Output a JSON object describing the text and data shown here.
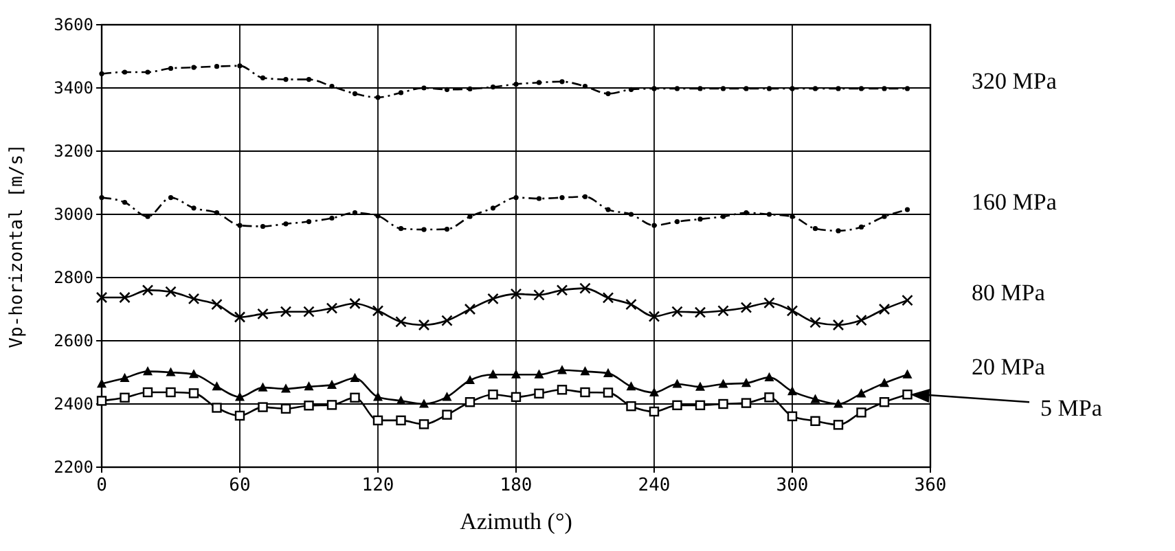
{
  "chart_data": {
    "type": "line",
    "xlabel": "Azimuth (°)",
    "ylabel": "Vp-horizontal [m/s]",
    "x": [
      0,
      10,
      20,
      30,
      40,
      50,
      60,
      70,
      80,
      90,
      100,
      110,
      120,
      130,
      140,
      150,
      160,
      170,
      180,
      190,
      200,
      210,
      220,
      230,
      240,
      250,
      260,
      270,
      280,
      290,
      300,
      310,
      320,
      330,
      340,
      350
    ],
    "xlim": [
      0,
      360
    ],
    "xticks": [
      0,
      60,
      120,
      180,
      240,
      300,
      360
    ],
    "ylim": [
      2200,
      3600
    ],
    "yticks": [
      2200,
      2400,
      2600,
      2800,
      3000,
      3200,
      3400,
      3600
    ],
    "grid": true,
    "legend": "right",
    "series": [
      {
        "name": "320 MPa",
        "color": "#000000",
        "marker": "circle",
        "line_style": "dashed",
        "values": [
          3445,
          3450,
          3450,
          3462,
          3465,
          3468,
          3470,
          3432,
          3427,
          3427,
          3405,
          3382,
          3370,
          3385,
          3400,
          3395,
          3397,
          3403,
          3412,
          3417,
          3420,
          3405,
          3382,
          3395,
          3398,
          3398,
          3398,
          3398,
          3398,
          3398,
          3398,
          3398,
          3398,
          3398,
          3398,
          3398
        ]
      },
      {
        "name": "160 MPa",
        "color": "#000000",
        "marker": "circle",
        "line_style": "dashed",
        "values": [
          3053,
          3038,
          2993,
          3053,
          3020,
          3005,
          2965,
          2962,
          2970,
          2977,
          2988,
          3005,
          2995,
          2955,
          2952,
          2953,
          2993,
          3020,
          3053,
          3050,
          3053,
          3056,
          3015,
          3000,
          2965,
          2977,
          2985,
          2993,
          3005,
          3000,
          2993,
          2955,
          2948,
          2960,
          2993,
          3015
        ]
      },
      {
        "name": "80 MPa",
        "color": "#000000",
        "marker": "cross",
        "line_style": "solid",
        "values": [
          2737,
          2737,
          2760,
          2755,
          2733,
          2715,
          2675,
          2685,
          2692,
          2692,
          2703,
          2718,
          2695,
          2660,
          2650,
          2664,
          2700,
          2733,
          2748,
          2745,
          2760,
          2766,
          2736,
          2715,
          2677,
          2692,
          2690,
          2695,
          2705,
          2720,
          2695,
          2658,
          2650,
          2665,
          2700,
          2728
        ]
      },
      {
        "name": "20 MPa",
        "color": "#000000",
        "marker": "triangle",
        "line_style": "solid",
        "values": [
          2464,
          2482,
          2503,
          2500,
          2494,
          2455,
          2422,
          2452,
          2448,
          2455,
          2460,
          2482,
          2422,
          2410,
          2400,
          2422,
          2475,
          2493,
          2493,
          2493,
          2507,
          2503,
          2497,
          2455,
          2436,
          2463,
          2454,
          2463,
          2466,
          2484,
          2440,
          2415,
          2400,
          2433,
          2466,
          2493
        ]
      },
      {
        "name": "5 MPa",
        "color": "#000000",
        "marker": "square",
        "line_style": "solid",
        "values": [
          2410,
          2420,
          2437,
          2437,
          2434,
          2388,
          2363,
          2390,
          2385,
          2395,
          2397,
          2420,
          2348,
          2348,
          2336,
          2366,
          2406,
          2430,
          2422,
          2433,
          2445,
          2437,
          2436,
          2393,
          2376,
          2396,
          2396,
          2400,
          2403,
          2421,
          2361,
          2346,
          2334,
          2373,
          2406,
          2430
        ]
      }
    ]
  }
}
